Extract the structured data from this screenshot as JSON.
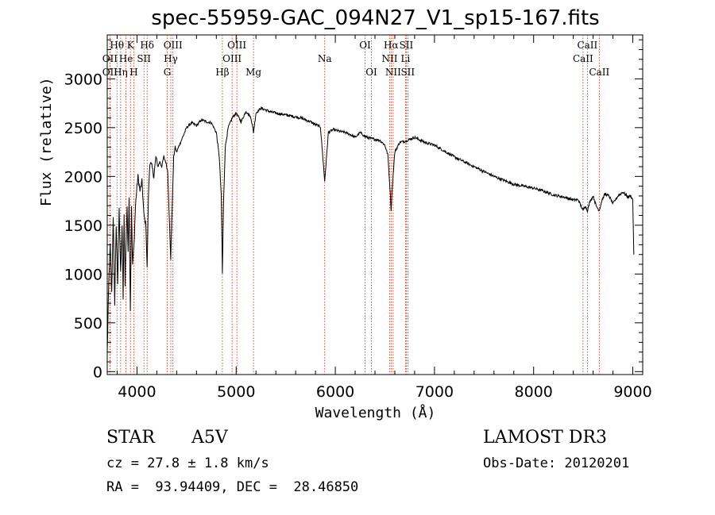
{
  "header": {
    "title": "spec-55959-GAC_094N27_V1_sp15-167.fits"
  },
  "chart_data": {
    "type": "line",
    "title": "spec-55959-GAC_094N27_V1_sp15-167.fits",
    "xlabel": "Wavelength (Å)",
    "ylabel": "Flux (relative)",
    "xlim": [
      3700,
      9100
    ],
    "ylim": [
      -30,
      3450
    ],
    "xticks": [
      4000,
      5000,
      6000,
      7000,
      8000,
      9000
    ],
    "yticks": [
      0,
      500,
      1000,
      1500,
      2000,
      2500,
      3000
    ],
    "series": [
      {
        "name": "flux",
        "x": [
          3700,
          3715,
          3730,
          3745,
          3760,
          3775,
          3790,
          3805,
          3820,
          3835,
          3850,
          3860,
          3870,
          3880,
          3889,
          3900,
          3910,
          3920,
          3933,
          3945,
          3955,
          3970,
          3985,
          4000,
          4010,
          4030,
          4050,
          4070,
          4090,
          4102,
          4115,
          4130,
          4150,
          4170,
          4190,
          4210,
          4230,
          4250,
          4270,
          4290,
          4310,
          4325,
          4340,
          4355,
          4370,
          4385,
          4400,
          4430,
          4460,
          4500,
          4550,
          4600,
          4650,
          4700,
          4750,
          4800,
          4830,
          4850,
          4861,
          4872,
          4890,
          4920,
          4960,
          5000,
          5050,
          5100,
          5150,
          5175,
          5200,
          5250,
          5300,
          5350,
          5400,
          5450,
          5500,
          5550,
          5600,
          5650,
          5700,
          5750,
          5800,
          5850,
          5893,
          5930,
          5980,
          6050,
          6100,
          6150,
          6200,
          6250,
          6300,
          6350,
          6400,
          6450,
          6500,
          6530,
          6550,
          6563,
          6575,
          6600,
          6650,
          6700,
          6750,
          6800,
          6900,
          7000,
          7100,
          7200,
          7300,
          7400,
          7500,
          7600,
          7700,
          7800,
          7900,
          8000,
          8100,
          8200,
          8300,
          8400,
          8450,
          8498,
          8520,
          8542,
          8570,
          8600,
          8630,
          8662,
          8690,
          8720,
          8760,
          8800,
          8850,
          8900,
          8950,
          8980,
          9000,
          9010
        ],
        "values": [
          200,
          900,
          1300,
          800,
          1600,
          700,
          1500,
          900,
          1700,
          1000,
          1500,
          750,
          1600,
          900,
          1300,
          1700,
          1200,
          1800,
          650,
          1700,
          1100,
          1300,
          1700,
          1900,
          2000,
          1850,
          1950,
          1600,
          1500,
          1050,
          1800,
          2150,
          2100,
          2000,
          2200,
          2100,
          2150,
          2100,
          2200,
          2150,
          2050,
          1600,
          1150,
          1700,
          2200,
          2300,
          2250,
          2330,
          2400,
          2500,
          2550,
          2520,
          2580,
          2560,
          2550,
          2450,
          2200,
          1800,
          1000,
          1700,
          2300,
          2500,
          2600,
          2650,
          2560,
          2670,
          2600,
          2450,
          2650,
          2700,
          2680,
          2660,
          2650,
          2640,
          2630,
          2620,
          2610,
          2600,
          2580,
          2560,
          2530,
          2510,
          1950,
          2450,
          2480,
          2460,
          2450,
          2430,
          2400,
          2450,
          2410,
          2390,
          2380,
          2370,
          2320,
          2220,
          1900,
          1650,
          1900,
          2250,
          2350,
          2360,
          2380,
          2400,
          2350,
          2320,
          2260,
          2200,
          2150,
          2100,
          2050,
          2000,
          1960,
          1920,
          1900,
          1880,
          1850,
          1810,
          1790,
          1760,
          1760,
          1650,
          1700,
          1650,
          1750,
          1800,
          1700,
          1650,
          1760,
          1820,
          1800,
          1720,
          1800,
          1840,
          1790,
          1800,
          1760,
          1200
        ]
      }
    ],
    "lines": [
      {
        "name": "OII",
        "x": 3727,
        "row": 2
      },
      {
        "name": "OII",
        "x": 3727,
        "row": 1
      },
      {
        "name": "Hθ",
        "x": 3798,
        "row": 0
      },
      {
        "name": "Hη",
        "x": 3835,
        "row": 2
      },
      {
        "name": "He",
        "x": 3889,
        "row": 1
      },
      {
        "name": "K",
        "x": 3934,
        "row": 0
      },
      {
        "name": "H",
        "x": 3968,
        "row": 2
      },
      {
        "name": "SII",
        "x": 4070,
        "row": 1
      },
      {
        "name": "Hδ",
        "x": 4102,
        "row": 0
      },
      {
        "name": "G",
        "x": 4305,
        "row": 2
      },
      {
        "name": "Hγ",
        "x": 4341,
        "row": 1
      },
      {
        "name": "OIII",
        "x": 4363,
        "row": 0
      },
      {
        "name": "Hβ",
        "x": 4861,
        "row": 2
      },
      {
        "name": "OIII",
        "x": 4959,
        "row": 1
      },
      {
        "name": "OIII",
        "x": 5007,
        "row": 0
      },
      {
        "name": "Mg",
        "x": 5175,
        "row": 2
      },
      {
        "name": "Na",
        "x": 5893,
        "row": 1
      },
      {
        "name": "OI",
        "x": 6300,
        "row": 0
      },
      {
        "name": "OI",
        "x": 6364,
        "row": 2
      },
      {
        "name": "NII",
        "x": 6548,
        "row": 1
      },
      {
        "name": "Hα",
        "x": 6563,
        "row": 0
      },
      {
        "name": "NII",
        "x": 6583,
        "row": 2
      },
      {
        "name": "Li",
        "x": 6708,
        "row": 1
      },
      {
        "name": "SII",
        "x": 6716,
        "row": 0
      },
      {
        "name": "SII",
        "x": 6731,
        "row": 2
      },
      {
        "name": "CaII",
        "x": 8498,
        "row": 1
      },
      {
        "name": "CaII",
        "x": 8542,
        "row": 0
      },
      {
        "name": "CaII",
        "x": 8662,
        "row": 2
      }
    ]
  },
  "info": {
    "object_type": "STAR",
    "subclass": "A5V",
    "survey": "LAMOST DR3",
    "cz": "cz = 27.8 ± 1.8 km/s",
    "obs_date": "Obs-Date: 20120201",
    "radec": "RA =  93.94409, DEC =  28.46850"
  },
  "colors": {
    "line_marker": "#cc2200",
    "spectrum": "#000000",
    "axis": "#000000"
  }
}
